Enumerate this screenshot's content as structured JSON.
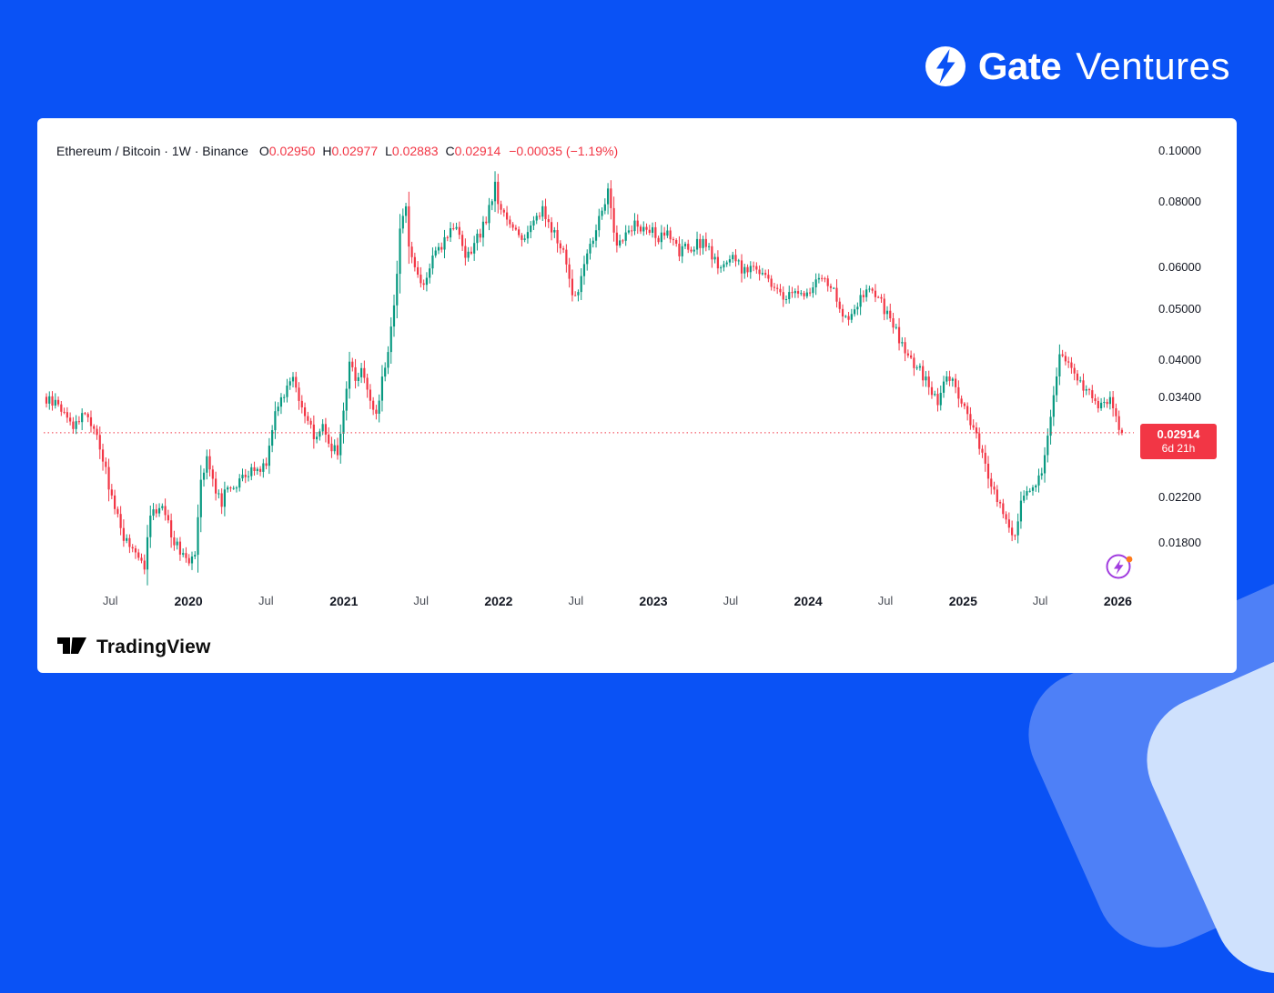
{
  "brand": {
    "name_bold": "Gate",
    "name_regular": "Ventures"
  },
  "colors": {
    "background": "#0a52f5",
    "accent_band_mid": "#4e80f7",
    "accent_band_light": "#cfe1fd",
    "card": "#ffffff",
    "badge": "#f23645"
  },
  "chart": {
    "header": {
      "title": "Ethereum / Bitcoin · 1W · Binance",
      "ohlc": {
        "o_label": "O",
        "o_value": "0.02950",
        "h_label": "H",
        "h_value": "0.02977",
        "l_label": "L",
        "l_value": "0.02883",
        "c_label": "C",
        "c_value": "0.02914",
        "change": "−0.00035 (−1.19%)"
      }
    },
    "price_badge": {
      "price": "0.02914",
      "countdown": "6d 21h"
    },
    "y_axis": [
      {
        "label": "0.10000",
        "value": 0.1
      },
      {
        "label": "0.08000",
        "value": 0.08
      },
      {
        "label": "0.06000",
        "value": 0.06
      },
      {
        "label": "0.05000",
        "value": 0.05
      },
      {
        "label": "0.04000",
        "value": 0.04
      },
      {
        "label": "0.03400",
        "value": 0.034
      },
      {
        "label": "0.02200",
        "value": 0.022
      },
      {
        "label": "0.01800",
        "value": 0.018
      }
    ],
    "x_axis": [
      {
        "label": "Jul",
        "week": 21.5,
        "year": false
      },
      {
        "label": "2020",
        "week": 47.8,
        "year": true
      },
      {
        "label": "Jul",
        "week": 73.9,
        "year": false
      },
      {
        "label": "2021",
        "week": 100.1,
        "year": true
      },
      {
        "label": "Jul",
        "week": 126.1,
        "year": false
      },
      {
        "label": "2022",
        "week": 152.2,
        "year": true
      },
      {
        "label": "Jul",
        "week": 178.2,
        "year": false
      },
      {
        "label": "2023",
        "week": 204.3,
        "year": true
      },
      {
        "label": "Jul",
        "week": 230.3,
        "year": false
      },
      {
        "label": "2024",
        "week": 256.4,
        "year": true
      },
      {
        "label": "Jul",
        "week": 282.4,
        "year": false
      },
      {
        "label": "2025",
        "week": 308.5,
        "year": true
      },
      {
        "label": "Jul",
        "week": 334.5,
        "year": false
      },
      {
        "label": "2026",
        "week": 360.6,
        "year": true
      }
    ],
    "footer": {
      "brand": "TradingView"
    }
  },
  "chart_data": {
    "type": "candlestick",
    "title": "Ethereum / Bitcoin",
    "symbol": "ETH/BTC",
    "exchange": "Binance",
    "interval": "1W",
    "scale": "logarithmic",
    "x_range": [
      "2019-02",
      "2026-01"
    ],
    "y_axis_ticks": [
      0.1,
      0.08,
      0.06,
      0.05,
      0.04,
      0.034,
      0.022,
      0.018
    ],
    "current_price": 0.02914,
    "current_price_line": "red dotted horizontal line at 0.02914",
    "countdown_to_bar_close": "6d 21h",
    "last_candle": {
      "open": 0.0295,
      "high": 0.02977,
      "low": 0.02883,
      "close": 0.02914,
      "change": -0.00035,
      "change_pct": -1.19
    },
    "colors": {
      "up": "#089981",
      "down": "#f23645",
      "line": "#f23645"
    },
    "weeks_total": 363,
    "week0_date": "2019-02",
    "anchors_weekly_close": [
      [
        0,
        0.0335
      ],
      [
        4,
        0.033
      ],
      [
        9,
        0.03
      ],
      [
        13,
        0.032
      ],
      [
        17,
        0.029
      ],
      [
        20,
        0.0245
      ],
      [
        22,
        0.022
      ],
      [
        26,
        0.0185
      ],
      [
        30,
        0.017
      ],
      [
        33,
        0.0164
      ],
      [
        35,
        0.02
      ],
      [
        39,
        0.0215
      ],
      [
        43,
        0.018
      ],
      [
        48,
        0.0168
      ],
      [
        50,
        0.0175
      ],
      [
        52,
        0.024
      ],
      [
        54,
        0.0262
      ],
      [
        56,
        0.0235
      ],
      [
        59,
        0.0215
      ],
      [
        61,
        0.023
      ],
      [
        65,
        0.0235
      ],
      [
        70,
        0.0248
      ],
      [
        74,
        0.0255
      ],
      [
        76,
        0.03
      ],
      [
        78,
        0.0335
      ],
      [
        80,
        0.0345
      ],
      [
        83,
        0.038
      ],
      [
        85,
        0.0335
      ],
      [
        87,
        0.031
      ],
      [
        89,
        0.0295
      ],
      [
        91,
        0.0285
      ],
      [
        93,
        0.03
      ],
      [
        96,
        0.0275
      ],
      [
        98,
        0.0265
      ],
      [
        100,
        0.032
      ],
      [
        102,
        0.04
      ],
      [
        104,
        0.037
      ],
      [
        106,
        0.039
      ],
      [
        109,
        0.033
      ],
      [
        111,
        0.031
      ],
      [
        113,
        0.037
      ],
      [
        115,
        0.042
      ],
      [
        117,
        0.05
      ],
      [
        119,
        0.07
      ],
      [
        121,
        0.08
      ],
      [
        122,
        0.065
      ],
      [
        124,
        0.06
      ],
      [
        126,
        0.056
      ],
      [
        128,
        0.058
      ],
      [
        130,
        0.062
      ],
      [
        133,
        0.066
      ],
      [
        135,
        0.07
      ],
      [
        137,
        0.072
      ],
      [
        139,
        0.068
      ],
      [
        141,
        0.062
      ],
      [
        143,
        0.064
      ],
      [
        146,
        0.07
      ],
      [
        148,
        0.074
      ],
      [
        150,
        0.082
      ],
      [
        151,
        0.086
      ],
      [
        152,
        0.078
      ],
      [
        154,
        0.076
      ],
      [
        156,
        0.073
      ],
      [
        159,
        0.07
      ],
      [
        161,
        0.068
      ],
      [
        163,
        0.072
      ],
      [
        165,
        0.076
      ],
      [
        167,
        0.077
      ],
      [
        169,
        0.072
      ],
      [
        172,
        0.068
      ],
      [
        174,
        0.064
      ],
      [
        176,
        0.057
      ],
      [
        178,
        0.052
      ],
      [
        180,
        0.058
      ],
      [
        182,
        0.064
      ],
      [
        185,
        0.07
      ],
      [
        187,
        0.078
      ],
      [
        189,
        0.084
      ],
      [
        191,
        0.07
      ],
      [
        192,
        0.066
      ],
      [
        193,
        0.068
      ],
      [
        196,
        0.07
      ],
      [
        198,
        0.074
      ],
      [
        200,
        0.071
      ],
      [
        202,
        0.072
      ],
      [
        204,
        0.07
      ],
      [
        206,
        0.068
      ],
      [
        209,
        0.069
      ],
      [
        213,
        0.064
      ],
      [
        217,
        0.066
      ],
      [
        222,
        0.067
      ],
      [
        226,
        0.06
      ],
      [
        230,
        0.063
      ],
      [
        235,
        0.059
      ],
      [
        239,
        0.061
      ],
      [
        243,
        0.056
      ],
      [
        248,
        0.053
      ],
      [
        252,
        0.054
      ],
      [
        256,
        0.053
      ],
      [
        261,
        0.058
      ],
      [
        265,
        0.054
      ],
      [
        269,
        0.048
      ],
      [
        274,
        0.052
      ],
      [
        278,
        0.055
      ],
      [
        282,
        0.05
      ],
      [
        287,
        0.044
      ],
      [
        291,
        0.04
      ],
      [
        295,
        0.0375
      ],
      [
        300,
        0.033
      ],
      [
        302,
        0.036
      ],
      [
        304,
        0.037
      ],
      [
        306,
        0.0355
      ],
      [
        308,
        0.033
      ],
      [
        313,
        0.029
      ],
      [
        317,
        0.024
      ],
      [
        321,
        0.021
      ],
      [
        324,
        0.019
      ],
      [
        326,
        0.0185
      ],
      [
        328,
        0.0215
      ],
      [
        330,
        0.023
      ],
      [
        332,
        0.0225
      ],
      [
        335,
        0.025
      ],
      [
        337,
        0.029
      ],
      [
        339,
        0.034
      ],
      [
        341,
        0.042
      ],
      [
        343,
        0.04
      ],
      [
        345,
        0.0385
      ],
      [
        348,
        0.036
      ],
      [
        350,
        0.0345
      ],
      [
        352,
        0.034
      ],
      [
        354,
        0.033
      ],
      [
        356,
        0.034
      ],
      [
        358,
        0.0335
      ],
      [
        360,
        0.032
      ],
      [
        361,
        0.0295
      ],
      [
        362,
        0.02914
      ]
    ]
  }
}
